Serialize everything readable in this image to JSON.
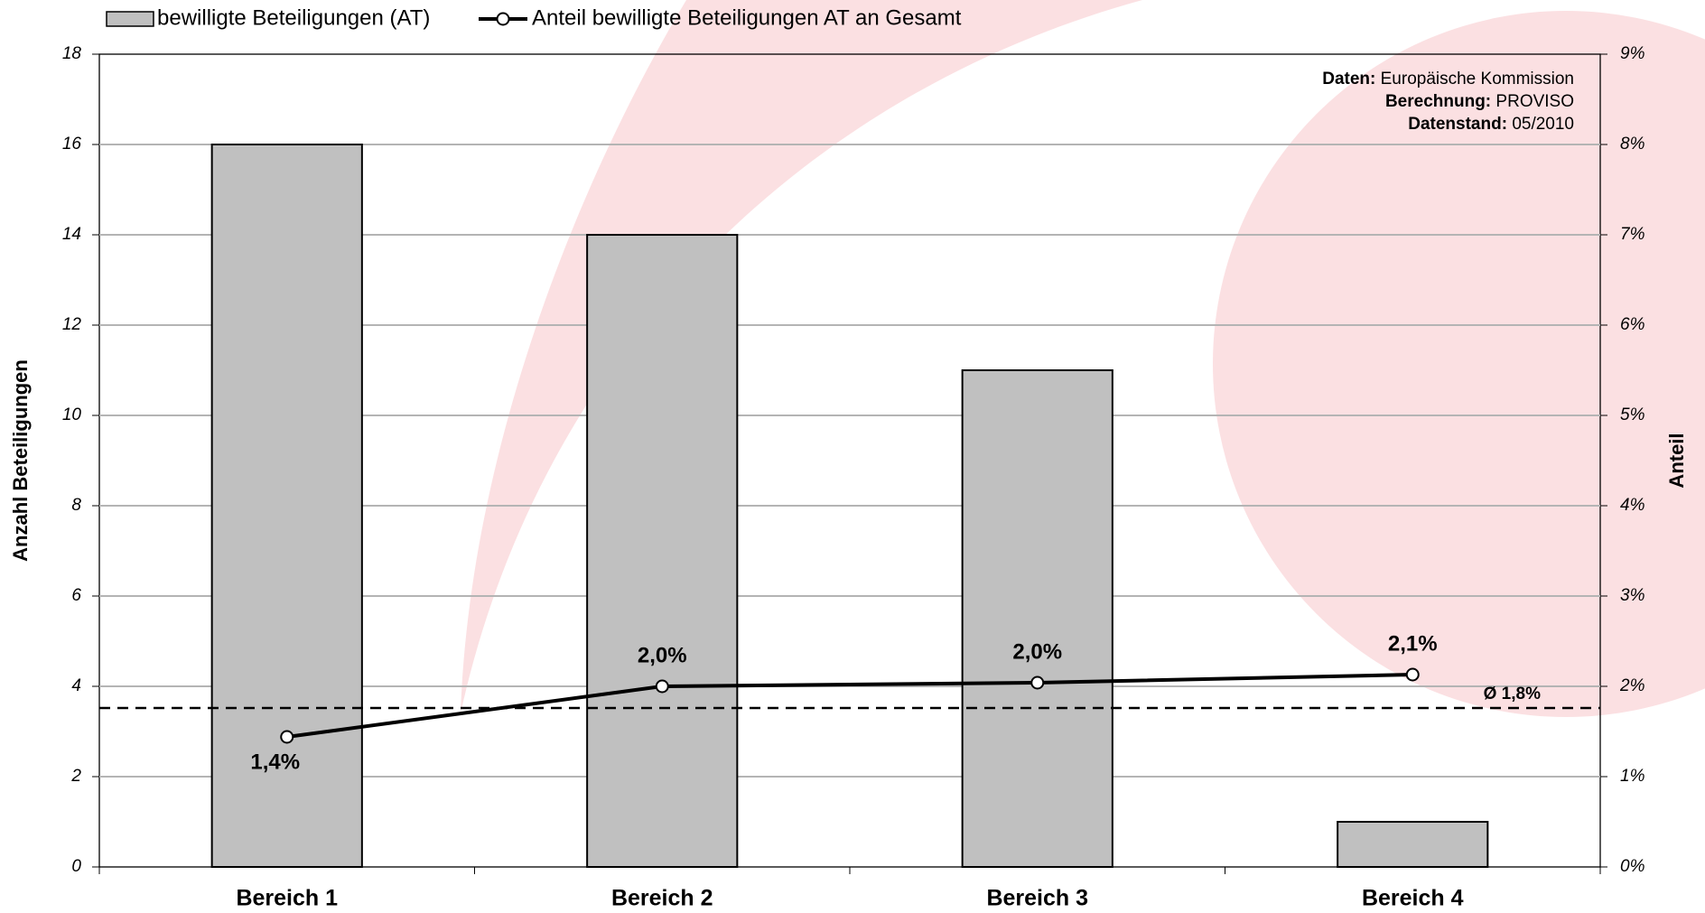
{
  "chart_data": {
    "type": "bar_line",
    "categories": [
      "Bereich 1",
      "Bereich 2",
      "Bereich 3",
      "Bereich 4"
    ],
    "series": [
      {
        "name": "bewilligte Beteiligungen (AT)",
        "type": "bar",
        "color": "#c0c0c0",
        "values": [
          16,
          14,
          11,
          1
        ]
      },
      {
        "name": "Anteil bewilligte Beteiligungen AT an Gesamt",
        "type": "line",
        "axis": "y2",
        "color": "#000000",
        "values": [
          1.44,
          2.0,
          2.04,
          2.13
        ],
        "value_labels": [
          "1,4%",
          "2,0%",
          "2,0%",
          "2,1%"
        ]
      }
    ],
    "reference_line": {
      "axis": "y2",
      "value": 1.76,
      "label": "Ø 1,8%"
    },
    "ylabel": "Anzahl Beteiligungen",
    "y2label": "Anteil",
    "ylim": [
      0,
      18
    ],
    "yticks": [
      0,
      2,
      4,
      6,
      8,
      10,
      12,
      14,
      16,
      18
    ],
    "y2lim": [
      0,
      9
    ],
    "y2ticks": [
      {
        "value": 0,
        "label": "0%"
      },
      {
        "value": 1,
        "label": "1%"
      },
      {
        "value": 2,
        "label": "2%"
      },
      {
        "value": 3,
        "label": "3%"
      },
      {
        "value": 4,
        "label": "4%"
      },
      {
        "value": 5,
        "label": "5%"
      },
      {
        "value": 6,
        "label": "6%"
      },
      {
        "value": 7,
        "label": "7%"
      },
      {
        "value": 8,
        "label": "8%"
      },
      {
        "value": 9,
        "label": "9%"
      }
    ],
    "grid": true,
    "legend": "top-left",
    "source": [
      {
        "label": "Daten:",
        "text": "Europäische Kommission"
      },
      {
        "label": "Berechnung:",
        "text": "PROVISO"
      },
      {
        "label": "Datenstand:",
        "text": "05/2010"
      }
    ]
  }
}
